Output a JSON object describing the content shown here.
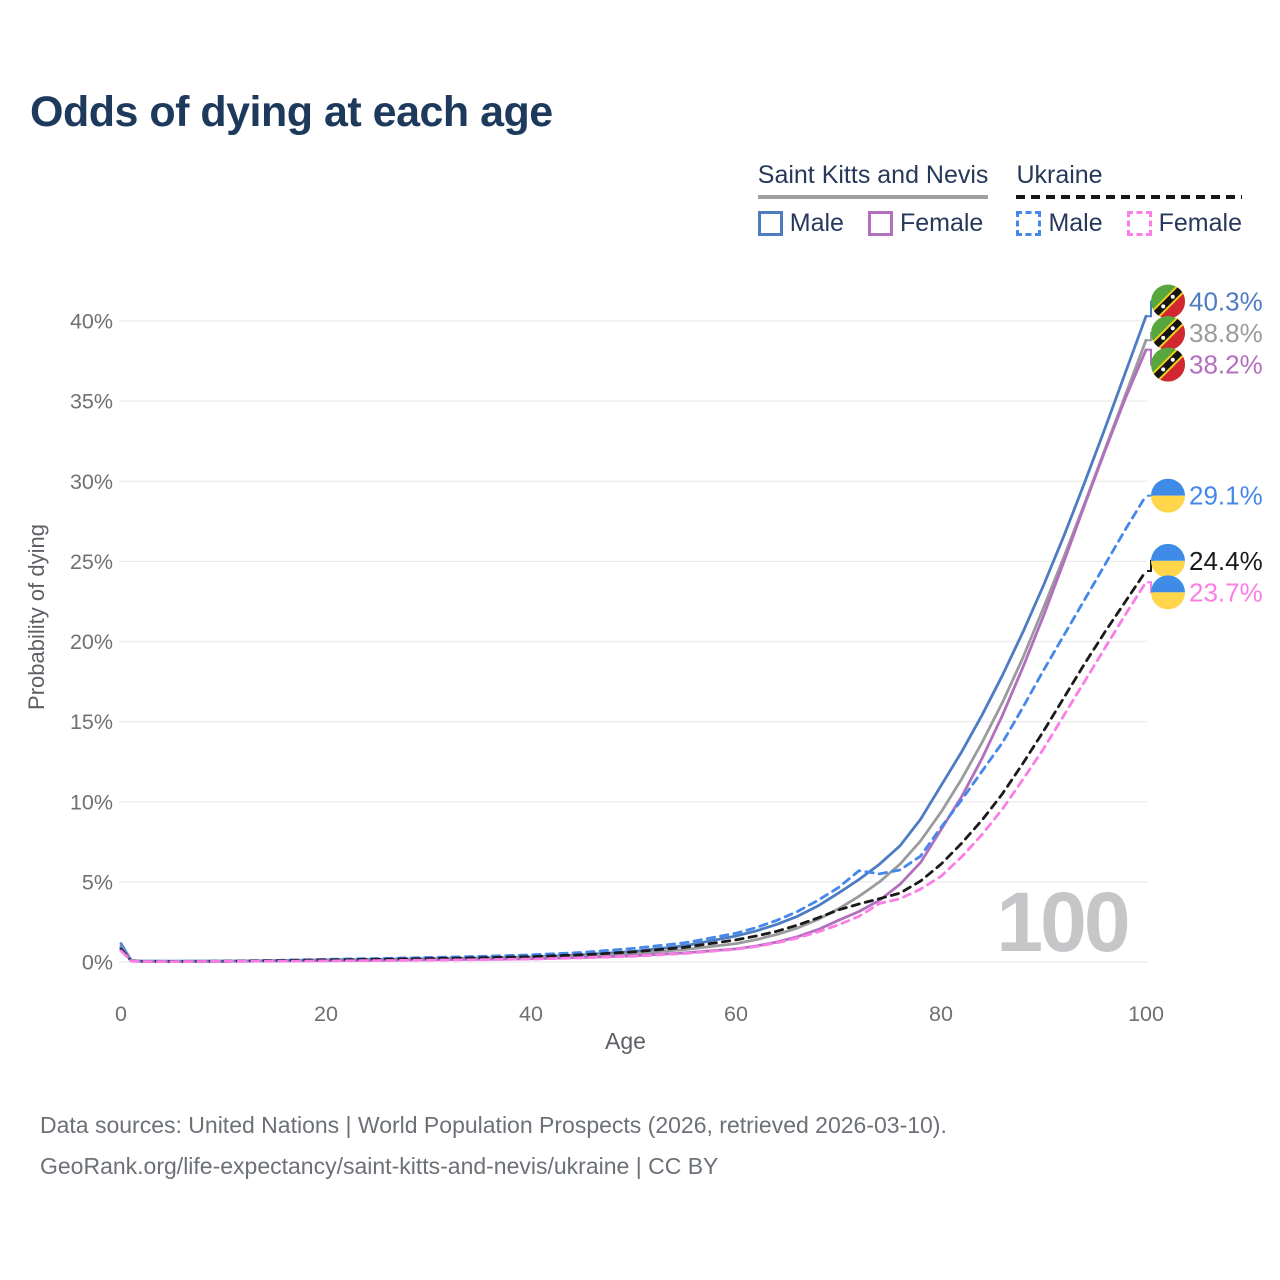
{
  "title": "Odds of dying at each age",
  "legend": {
    "groups": [
      {
        "country": "Saint Kitts and Nevis",
        "underline_style": "solid",
        "underline_color": "#a0a0a3",
        "items": [
          {
            "label": "Male",
            "color": "#4d7cc2",
            "dashed": false
          },
          {
            "label": "Female",
            "color": "#b26fbd",
            "dashed": false
          }
        ]
      },
      {
        "country": "Ukraine",
        "underline_style": "dashed",
        "underline_color": "#161616",
        "items": [
          {
            "label": "Male",
            "color": "#4687ea",
            "dashed": true
          },
          {
            "label": "Female",
            "color": "#fb7de6",
            "dashed": true
          }
        ]
      }
    ]
  },
  "watermark": "100",
  "footer": {
    "line1": "Data sources: United Nations | World Population Prospects (2026, retrieved 2026-03-10).",
    "line2": "GeoRank.org/life-expectancy/saint-kitts-and-nevis/ukraine | CC BY"
  },
  "chart_data": {
    "type": "line",
    "title": "Odds of dying at each age",
    "xlabel": "Age",
    "ylabel": "Probability of dying",
    "xlim": [
      0,
      100
    ],
    "ylim_pct": [
      0,
      40
    ],
    "x_ticks": [
      0,
      20,
      40,
      60,
      80,
      100
    ],
    "y_ticks_pct": [
      0,
      5,
      10,
      15,
      20,
      25,
      30,
      35,
      40
    ],
    "y_tick_labels": [
      "0%",
      "5%",
      "10%",
      "15%",
      "20%",
      "25%",
      "30%",
      "35%",
      "40%"
    ],
    "grid": "horizontal-only",
    "legend_position": "top-right",
    "ages": [
      0,
      1,
      2,
      5,
      10,
      15,
      20,
      25,
      30,
      35,
      40,
      45,
      50,
      55,
      60,
      62,
      64,
      66,
      68,
      70,
      72,
      74,
      76,
      78,
      80,
      82,
      84,
      86,
      88,
      90,
      92,
      94,
      96,
      98,
      100
    ],
    "series": [
      {
        "name": "Saint Kitts and Nevis — Male",
        "country": "Saint Kitts and Nevis",
        "sex": "Male",
        "color": "#4d7cc2",
        "dashed": false,
        "flag": "kn",
        "end_label": "40.3%",
        "end_value_pct": 40.3,
        "values_pct": [
          1.15,
          0.09,
          0.06,
          0.05,
          0.06,
          0.09,
          0.13,
          0.16,
          0.2,
          0.25,
          0.31,
          0.45,
          0.66,
          1.02,
          1.62,
          1.95,
          2.35,
          2.85,
          3.5,
          4.3,
          5.15,
          6.1,
          7.25,
          8.9,
          11.0,
          13.1,
          15.4,
          17.9,
          20.6,
          23.5,
          26.6,
          29.9,
          33.3,
          36.8,
          40.3
        ]
      },
      {
        "name": "Saint Kitts and Nevis — Both sexes",
        "country": "Saint Kitts and Nevis",
        "sex": "Both sexes",
        "color": "#9b9b9d",
        "dashed": false,
        "flag": "kn",
        "end_label": "38.8%",
        "end_value_pct": 38.8,
        "values_pct": [
          1.0,
          0.08,
          0.05,
          0.04,
          0.05,
          0.08,
          0.11,
          0.14,
          0.17,
          0.21,
          0.26,
          0.37,
          0.52,
          0.78,
          1.15,
          1.4,
          1.72,
          2.12,
          2.65,
          3.32,
          4.1,
          5.0,
          6.1,
          7.55,
          9.35,
          11.4,
          13.7,
          16.2,
          19.0,
          22.1,
          25.3,
          28.6,
          32.0,
          35.4,
          38.8
        ]
      },
      {
        "name": "Saint Kitts and Nevis — Female",
        "country": "Saint Kitts and Nevis",
        "sex": "Female",
        "color": "#b26fbd",
        "dashed": false,
        "flag": "kn",
        "end_label": "38.2%",
        "end_value_pct": 38.2,
        "values_pct": [
          0.86,
          0.07,
          0.04,
          0.03,
          0.04,
          0.06,
          0.08,
          0.1,
          0.13,
          0.16,
          0.2,
          0.28,
          0.39,
          0.57,
          0.82,
          1.0,
          1.25,
          1.58,
          2.02,
          2.6,
          3.15,
          3.85,
          4.85,
          6.2,
          8.25,
          10.3,
          12.7,
          15.4,
          18.4,
          21.6,
          25.0,
          28.5,
          31.9,
          35.2,
          38.2
        ]
      },
      {
        "name": "Ukraine — Male",
        "country": "Ukraine",
        "sex": "Male",
        "color": "#4687ea",
        "dashed": true,
        "flag": "ua",
        "end_label": "29.1%",
        "end_value_pct": 29.1,
        "values_pct": [
          0.92,
          0.07,
          0.05,
          0.04,
          0.05,
          0.1,
          0.17,
          0.22,
          0.28,
          0.35,
          0.44,
          0.6,
          0.85,
          1.2,
          1.8,
          2.15,
          2.6,
          3.15,
          3.85,
          4.65,
          5.7,
          5.5,
          5.75,
          6.6,
          8.4,
          10.1,
          11.9,
          13.7,
          15.9,
          18.2,
          20.4,
          22.6,
          24.8,
          27.0,
          29.1
        ]
      },
      {
        "name": "Ukraine — Both sexes",
        "country": "Ukraine",
        "sex": "Both sexes",
        "color": "#1a1a1a",
        "dashed": true,
        "flag": "ua",
        "end_label": "24.4%",
        "end_value_pct": 24.4,
        "values_pct": [
          0.8,
          0.06,
          0.04,
          0.035,
          0.045,
          0.08,
          0.13,
          0.165,
          0.21,
          0.26,
          0.33,
          0.45,
          0.63,
          0.92,
          1.38,
          1.62,
          1.92,
          2.3,
          2.75,
          3.25,
          3.62,
          3.95,
          4.3,
          5.05,
          6.1,
          7.4,
          8.85,
          10.5,
          12.4,
          14.4,
          16.5,
          18.6,
          20.6,
          22.5,
          24.4
        ]
      },
      {
        "name": "Ukraine — Female",
        "country": "Ukraine",
        "sex": "Female",
        "color": "#fb7de6",
        "dashed": true,
        "flag": "ua",
        "end_label": "23.7%",
        "end_value_pct": 23.7,
        "values_pct": [
          0.7,
          0.05,
          0.03,
          0.025,
          0.035,
          0.05,
          0.07,
          0.09,
          0.115,
          0.145,
          0.18,
          0.26,
          0.36,
          0.53,
          0.8,
          0.97,
          1.2,
          1.5,
          1.88,
          2.32,
          2.85,
          3.65,
          3.95,
          4.55,
          5.35,
          6.55,
          7.95,
          9.55,
          11.4,
          13.3,
          15.4,
          17.5,
          19.6,
          21.7,
          23.7
        ]
      }
    ],
    "flag_colors": {
      "kn": {
        "green": "#57a63e",
        "red": "#d22730",
        "band": "#151515",
        "edge": "#f2cf1c",
        "star": "#ffffff"
      },
      "ua": {
        "blue": "#3f8ce8",
        "yellow": "#ffd54a"
      }
    },
    "style": {
      "grid_color": "#ebebee",
      "tick_color": "#6e7073",
      "axis_title_color": "#5e6065",
      "watermark_color": "#c6c6c9"
    }
  }
}
